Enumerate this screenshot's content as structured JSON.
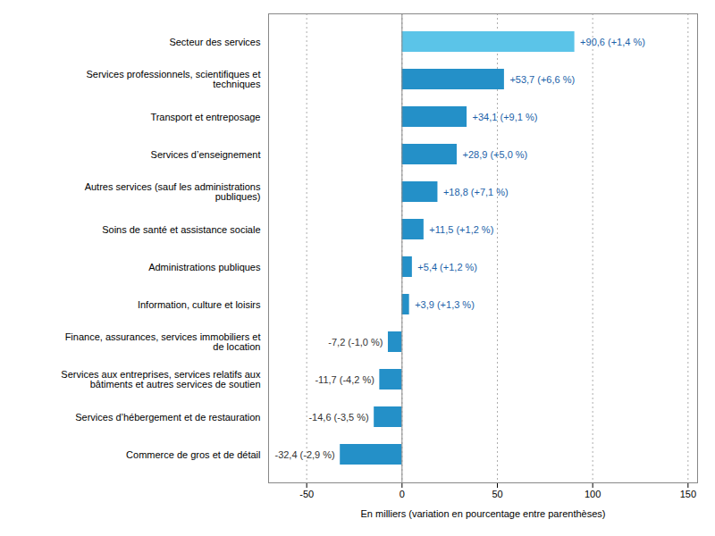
{
  "chart_data": {
    "type": "bar",
    "orientation": "horizontal",
    "categories": [
      "Commerce de gros et de détail",
      "Services d’hébergement et de restauration",
      "Services aux entreprises, services relatifs aux\nbâtiments et autres services de soutien",
      "Finance, assurances, services immobiliers et\nde location",
      "Information, culture et loisirs",
      "Administrations publiques",
      "Soins de santé et assistance sociale",
      "Autres services (sauf les administrations\npubliques)",
      "Services d’enseignement",
      "Transport et entreposage",
      "Services professionnels, scientifiques et\ntechniques",
      "Secteur des services"
    ],
    "values": [
      -32.4,
      -14.6,
      -11.7,
      -7.2,
      3.9,
      5.4,
      11.5,
      18.8,
      28.9,
      34.1,
      53.7,
      90.6
    ],
    "value_labels": [
      "-32,4 (-2,9 %)",
      "-14,6 (-3,5 %)",
      "-11,7 (-4,2 %)",
      "-7,2 (-1,0 %)",
      "+3,9 (+1,3 %)",
      "+5,4 (+1,2 %)",
      "+11,5 (+1,2 %)",
      "+18,8 (+7,1 %)",
      "+28,9 (+5,0 %)",
      "+34,1 (+9,1 %)",
      "+53,7 (+6,6 %)",
      "+90,6 (+1,4 %)"
    ],
    "data_labels": true,
    "colors": [
      "#2490c8",
      "#2490c8",
      "#2490c8",
      "#2490c8",
      "#2490c8",
      "#2490c8",
      "#2490c8",
      "#2490c8",
      "#2490c8",
      "#2490c8",
      "#2490c8",
      "#5bc4e8"
    ],
    "xlabel": "En milliers (variation en pourcentage entre parenthèses)",
    "xlim": [
      -70,
      155
    ],
    "xticks": [
      -50,
      0,
      50,
      100,
      150
    ],
    "grid": true
  }
}
